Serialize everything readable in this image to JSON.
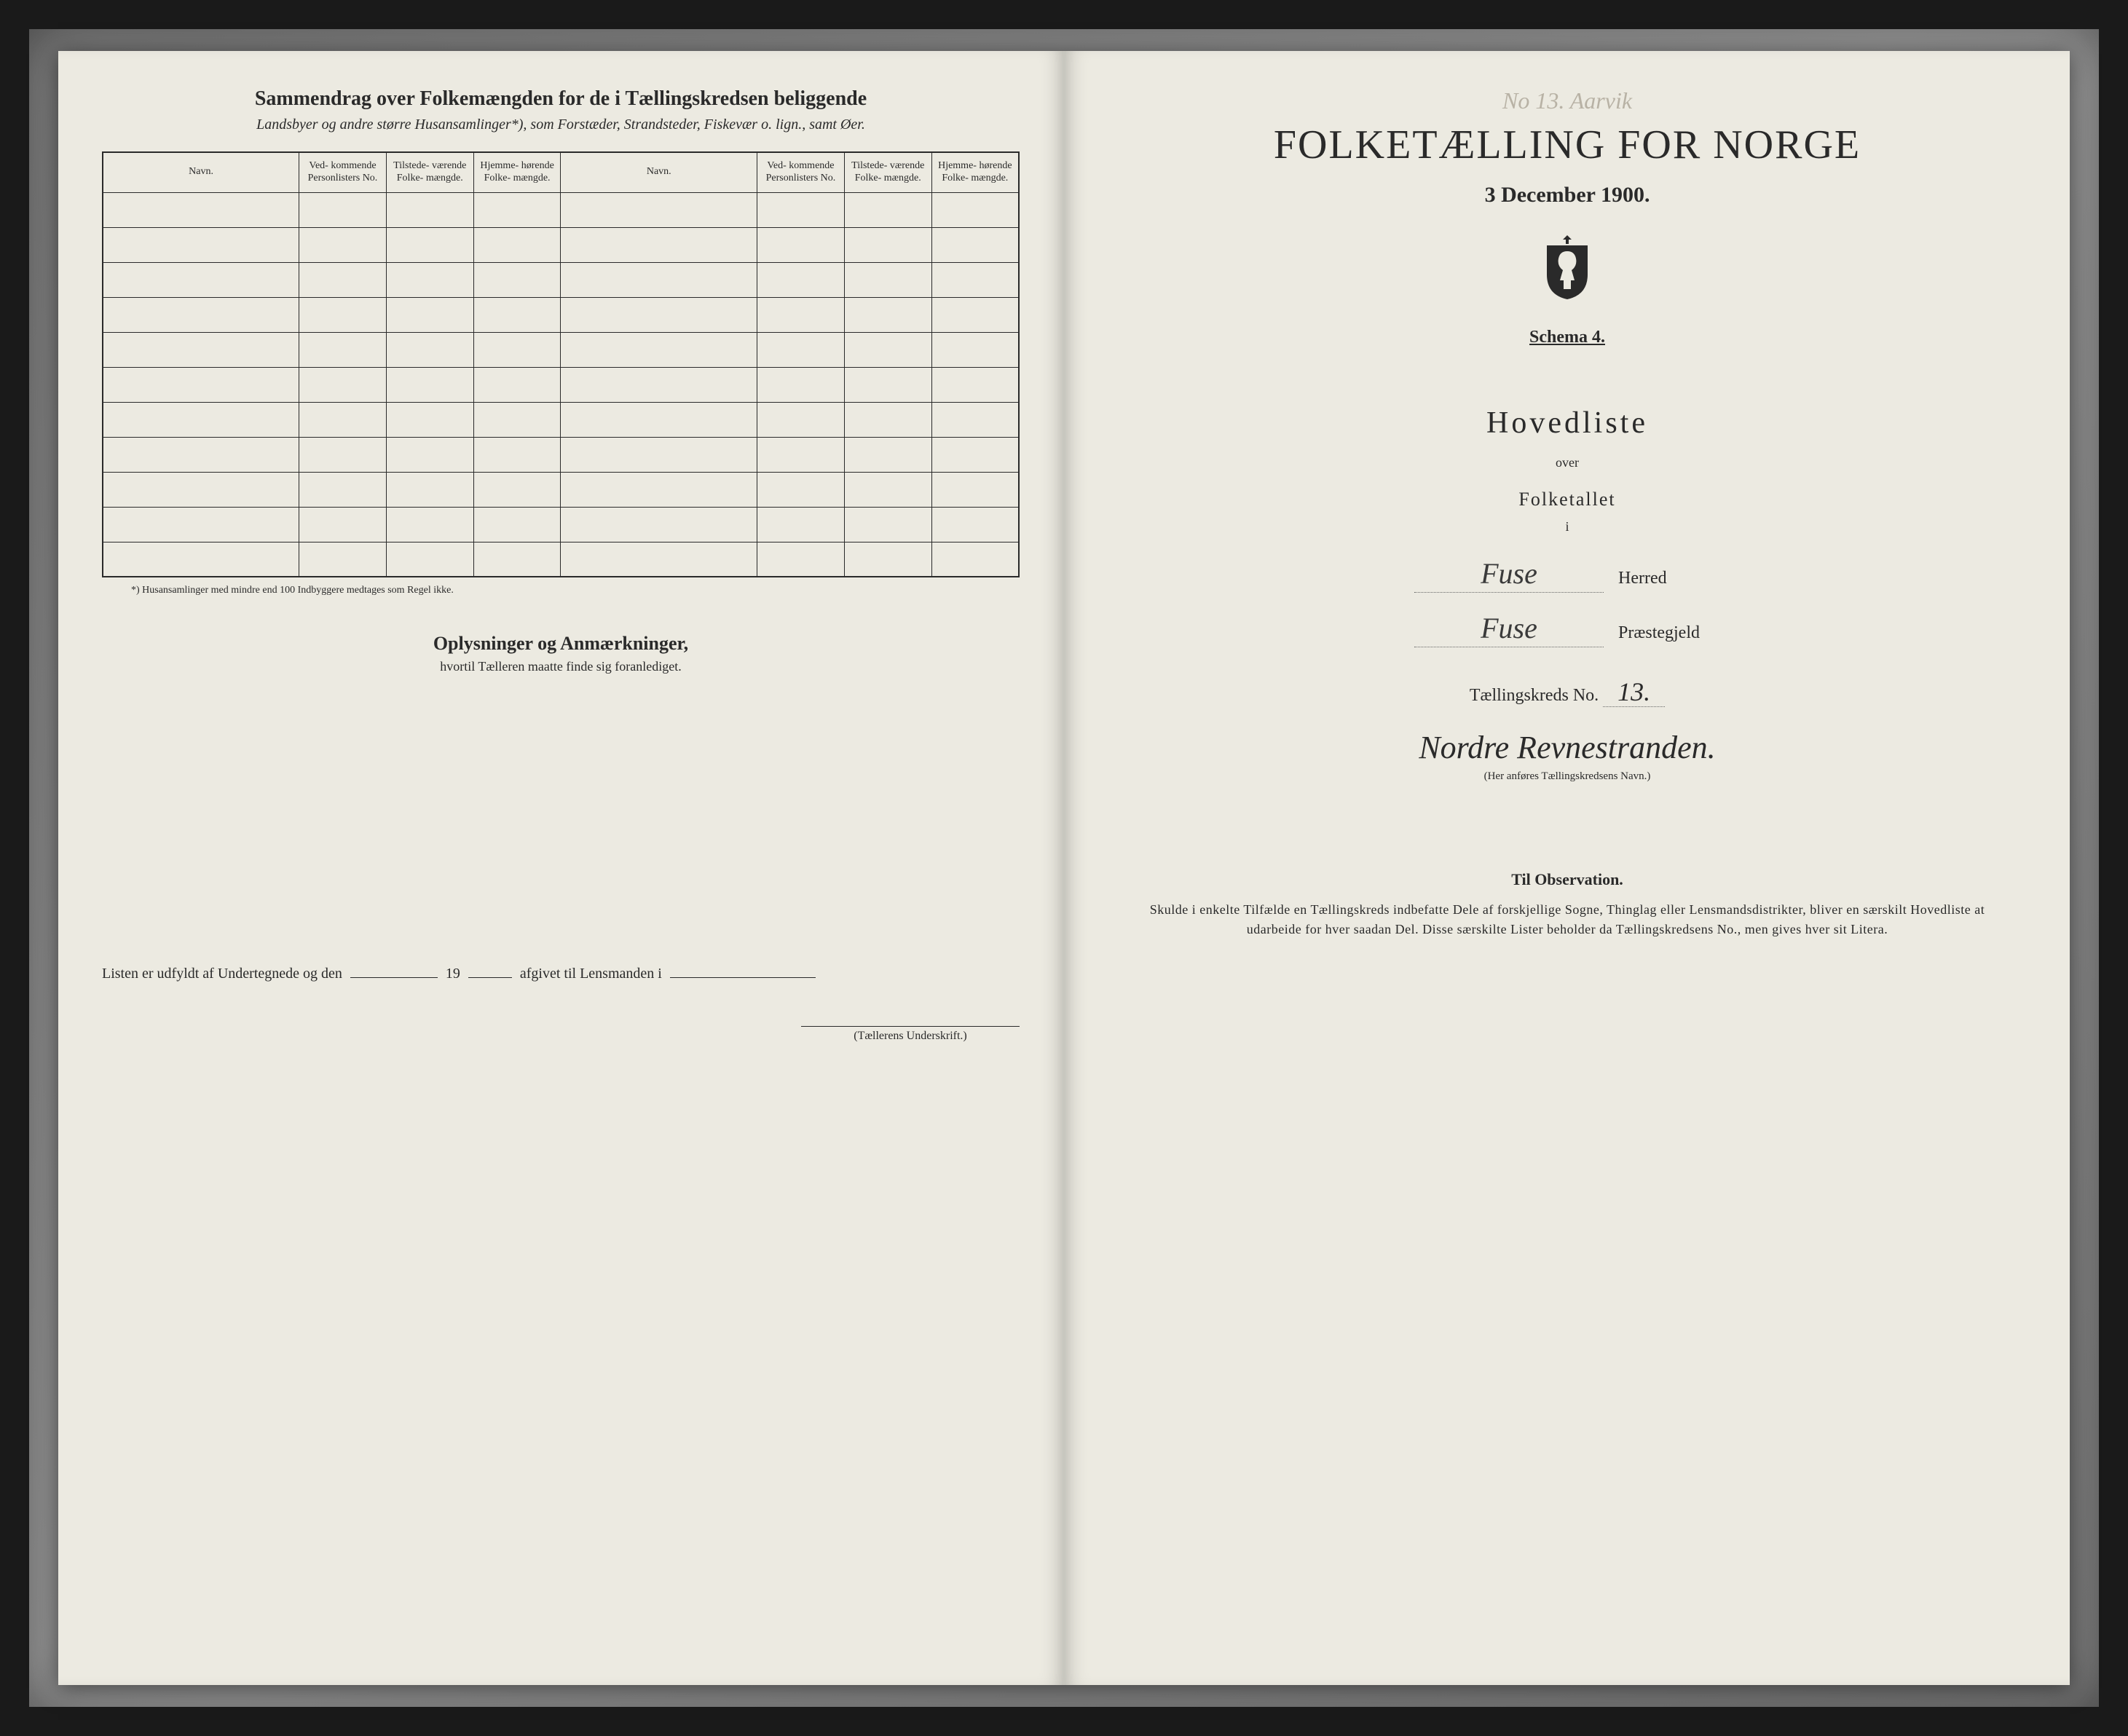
{
  "leftPage": {
    "title": "Sammendrag over Folkemængden for de i Tællingskredsen beliggende",
    "subtitle": "Landsbyer og andre større Husansamlinger*), som Forstæder, Strandsteder, Fiskevær o. lign., samt Øer.",
    "table": {
      "headers": {
        "navn": "Navn.",
        "vedkommende": "Ved-\nkommende\nPersonlisters\nNo.",
        "tilstede": "Tilstede-\nværende\nFolke-\nmængde.",
        "hjemme": "Hjemme-\nhørende\nFolke-\nmængde."
      },
      "blankRows": 11
    },
    "footnote": "*) Husansamlinger med mindre end 100 Indbyggere medtages som Regel ikke.",
    "opsTitle": "Oplysninger og Anmærkninger,",
    "opsSub": "hvortil Tælleren maatte finde sig foranlediget.",
    "bottomLine": {
      "prefix": "Listen er udfyldt af Undertegnede og den",
      "year": "19",
      "suffix": "afgivet til Lensmanden i"
    },
    "signCaption": "(Tællerens Underskrift.)"
  },
  "rightPage": {
    "pencilNote": "No 13. Aarvik",
    "mainTitle": "FOLKETÆLLING FOR NORGE",
    "date": "3 December 1900.",
    "schema": "Schema 4.",
    "hovedliste": "Hovedliste",
    "over": "over",
    "folketallet": "Folketallet",
    "i": "i",
    "herred": {
      "value": "Fuse",
      "label": "Herred"
    },
    "praestegjeld": {
      "value": "Fuse",
      "label": "Præstegjeld"
    },
    "kredsLabel": "Tællingskreds No.",
    "kredsNo": "13.",
    "kredsName": "Nordre Revnestranden.",
    "kredsCaption": "(Her anføres Tællingskredsens Navn.)",
    "obsTitle": "Til Observation.",
    "obsBody": "Skulde i enkelte Tilfælde en Tællingskreds indbefatte Dele af forskjellige Sogne, Thinglag eller Lensmandsdistrikter, bliver en særskilt Hovedliste at udarbeide for hver saadan Del. Disse særskilte Lister beholder da Tællingskredsens No., men gives hver sit Litera."
  },
  "colors": {
    "pageBg": "#eceae1",
    "ink": "#2a2a2a",
    "pencil": "#b8b2a5",
    "frame": "#1a1a1a"
  }
}
